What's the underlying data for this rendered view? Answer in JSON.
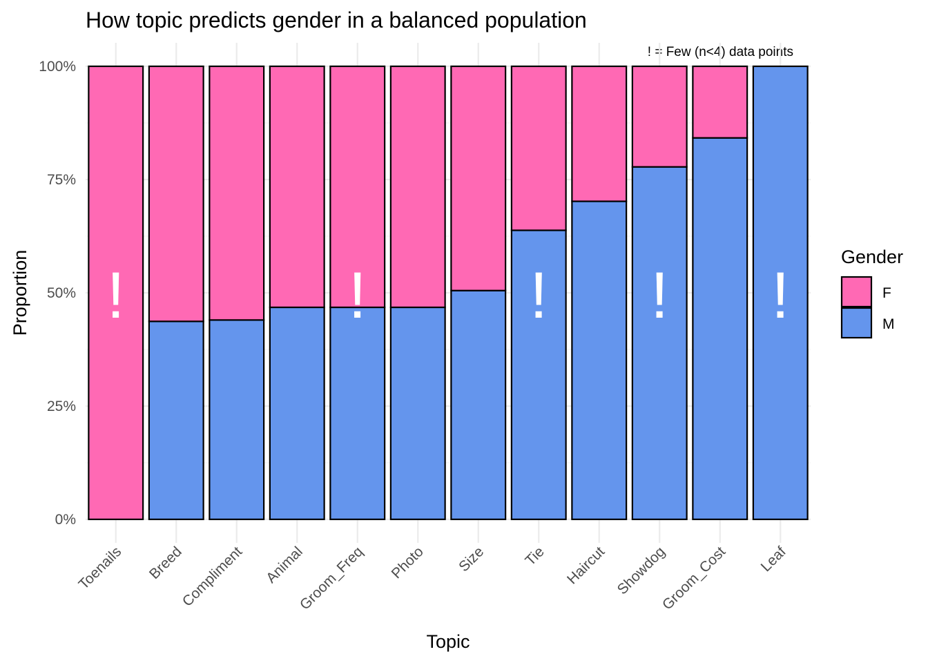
{
  "chart_data": {
    "type": "bar",
    "stacked": true,
    "title": "How topic predicts gender in a balanced population",
    "xlabel": "Topic",
    "ylabel": "Proportion",
    "ylim": [
      0,
      1
    ],
    "y_ticks": [
      "0%",
      "25%",
      "50%",
      "75%",
      "100%"
    ],
    "categories": [
      "Toenails",
      "Breed",
      "Compliment",
      "Animal",
      "Groom_Freq",
      "Photo",
      "Size",
      "Tie",
      "Haircut",
      "Showdog",
      "Groom_Cost",
      "Leaf"
    ],
    "series": [
      {
        "name": "M",
        "color": "#6495ed",
        "values": [
          0.0,
          0.437,
          0.44,
          0.468,
          0.468,
          0.468,
          0.505,
          0.638,
          0.702,
          0.778,
          0.842,
          1.0
        ]
      },
      {
        "name": "F",
        "color": "#ff69b4",
        "values": [
          1.0,
          0.563,
          0.56,
          0.532,
          0.532,
          0.532,
          0.495,
          0.362,
          0.298,
          0.222,
          0.158,
          0.0
        ]
      }
    ],
    "few_data_flags": [
      true,
      false,
      false,
      false,
      true,
      false,
      false,
      true,
      false,
      true,
      false,
      true
    ],
    "flag_symbol": "!",
    "annotation": "! = Few (n<4) data points",
    "legend": {
      "title": "Gender",
      "entries": [
        "F",
        "M"
      ],
      "placement": "right"
    },
    "grid": true
  }
}
